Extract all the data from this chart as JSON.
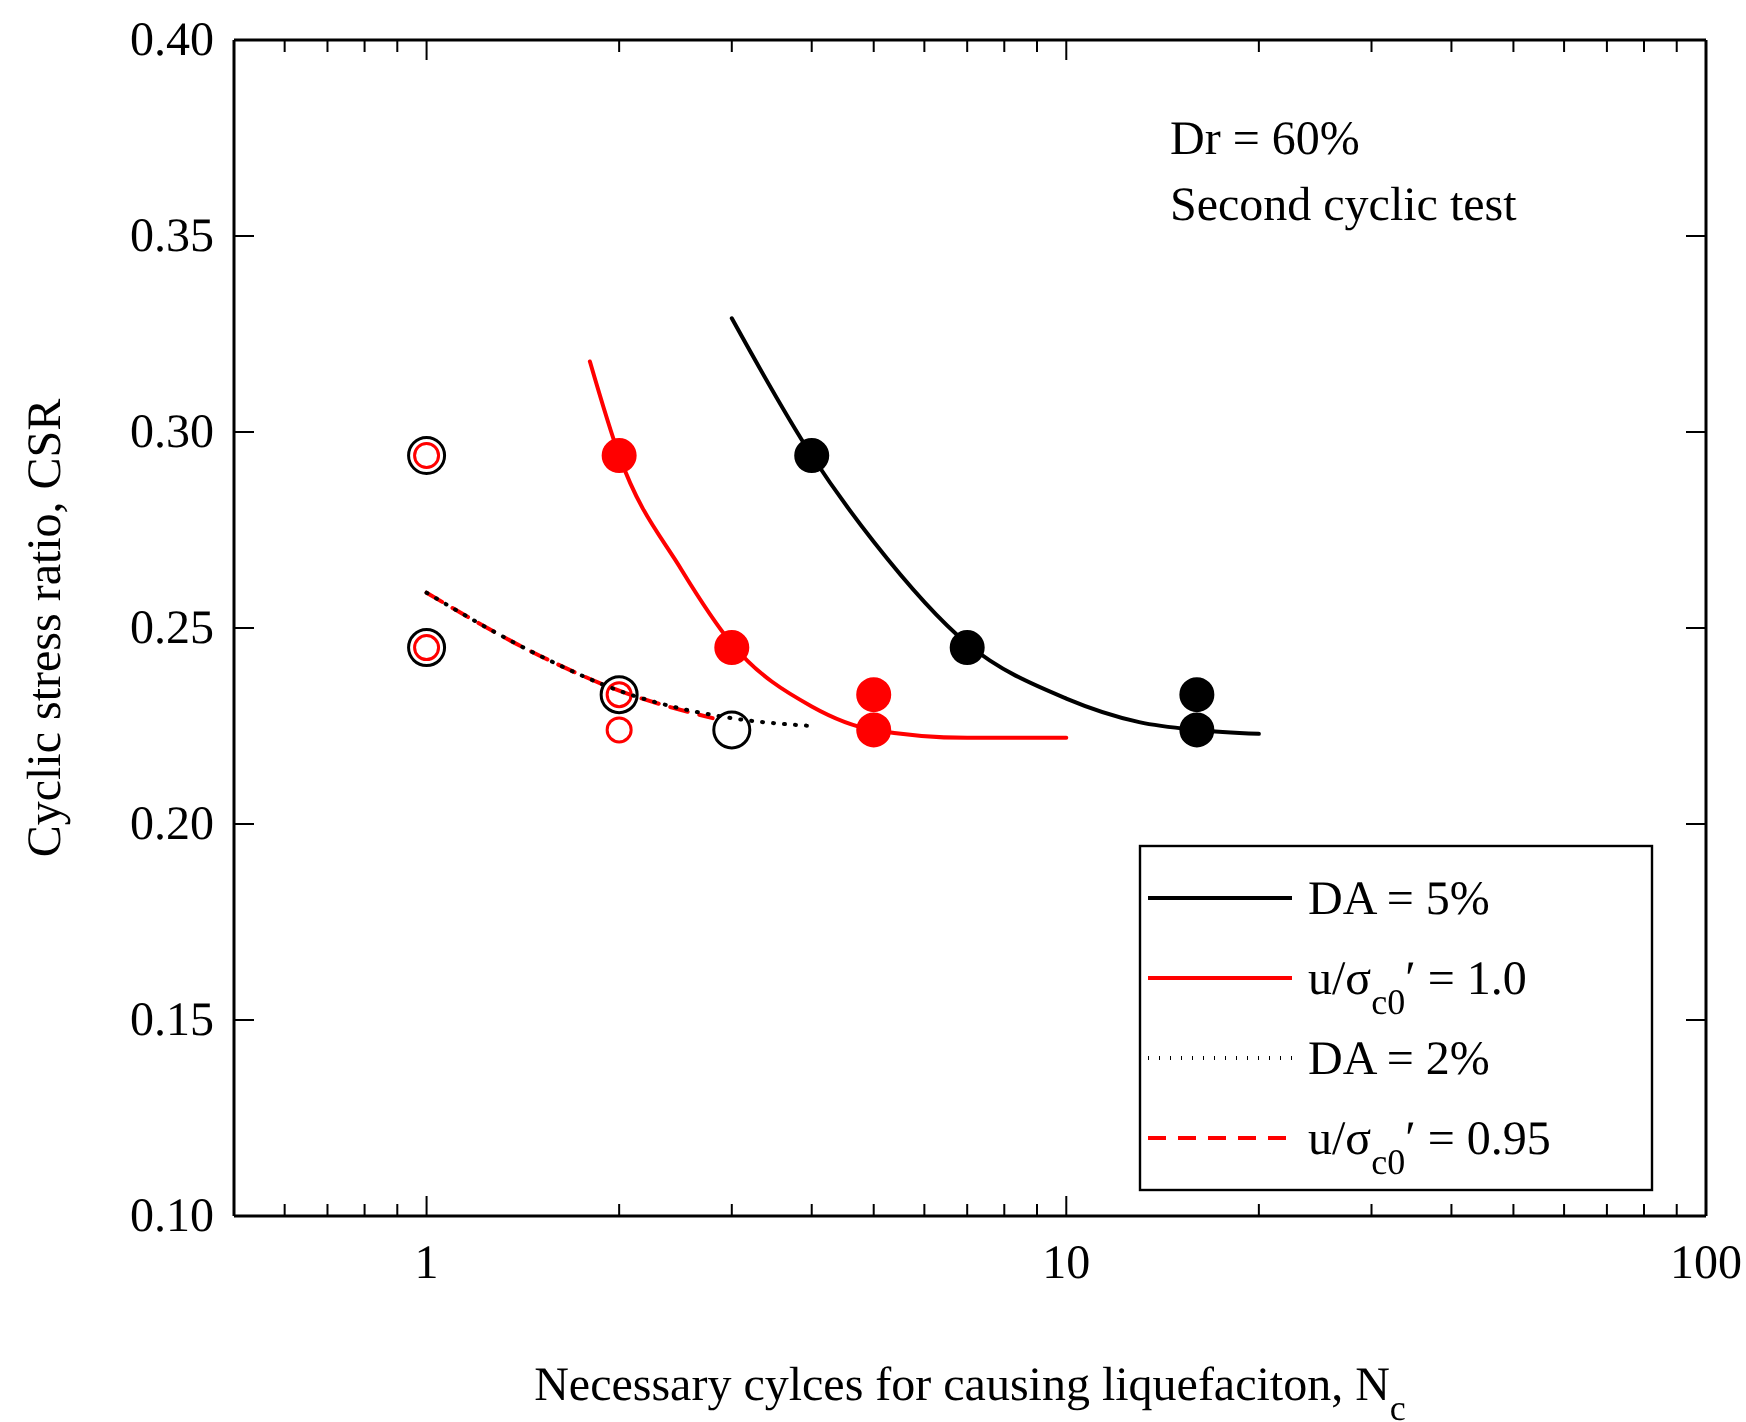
{
  "chart_data": {
    "type": "scatter",
    "xlabel": "Necessary cylces for causing liquefaciton, N$_{c}$",
    "ylabel": "Cyclic stress ratio, CSR",
    "log": "x",
    "xlim": [
      0.5,
      100
    ],
    "ylim": [
      0.1,
      0.4
    ],
    "xticks": [
      {
        "value": 0.6,
        "label": null
      },
      {
        "value": 0.7,
        "label": null
      },
      {
        "value": 0.8,
        "label": null
      },
      {
        "value": 0.9,
        "label": null
      },
      1,
      {
        "value": 2,
        "label": null
      },
      {
        "value": 3,
        "label": null
      },
      {
        "value": 4,
        "label": null
      },
      {
        "value": 5,
        "label": null
      },
      {
        "value": 6,
        "label": null
      },
      {
        "value": 7,
        "label": null
      },
      {
        "value": 8,
        "label": null
      },
      {
        "value": 9,
        "label": null
      },
      10,
      {
        "value": 20,
        "label": null
      },
      {
        "value": 30,
        "label": null
      },
      {
        "value": 40,
        "label": null
      },
      {
        "value": 50,
        "label": null
      },
      {
        "value": 60,
        "label": null
      },
      {
        "value": 70,
        "label": null
      },
      {
        "value": 80,
        "label": null
      },
      {
        "value": 90,
        "label": null
      },
      100
    ],
    "yticks": [
      {
        "value": 0.1,
        "label": "0.10"
      },
      {
        "value": 0.15,
        "label": "0.15"
      },
      {
        "value": 0.2,
        "label": "0.20"
      },
      {
        "value": 0.25,
        "label": "0.25"
      },
      {
        "value": 0.3,
        "label": "0.30"
      },
      {
        "value": 0.35,
        "label": "0.35"
      },
      {
        "value": 0.4,
        "label": "0.40"
      }
    ],
    "grid": false,
    "legend": "bottom right",
    "annotations": [
      "Dr = 60%",
      "Second cyclic test"
    ],
    "series": [
      {
        "name": "DA = 5%",
        "type": "line",
        "color": "#000000",
        "marker": "none",
        "line_style": "solid",
        "x": [
          3,
          4,
          5,
          7,
          10,
          13,
          16,
          20
        ],
        "values": [
          0.329,
          0.294,
          0.272,
          0.246,
          0.232,
          0.226,
          0.224,
          0.223
        ]
      },
      {
        "name": "u/σ$_{c0}$′ = 1.0",
        "type": "line",
        "color": "#ff0000",
        "marker": "none",
        "line_style": "solid",
        "x": [
          1.8,
          2,
          2.5,
          3,
          4,
          5,
          7,
          10
        ],
        "values": [
          0.318,
          0.294,
          0.265,
          0.246,
          0.23,
          0.224,
          0.222,
          0.222
        ]
      },
      {
        "name": "DA = 2%",
        "type": "line",
        "color": "#000000",
        "marker": "none",
        "line_style": "dotted",
        "x": [
          1,
          1.5,
          2,
          3,
          4
        ],
        "values": [
          0.259,
          0.243,
          0.234,
          0.227,
          0.225
        ]
      },
      {
        "name": "u/σ$_{c0}$′ = 0.95",
        "type": "line",
        "color": "#ff0000",
        "marker": "none",
        "line_style": "dashed",
        "x": [
          1,
          1.5,
          2,
          2.8
        ],
        "values": [
          0.259,
          0.243,
          0.234,
          0.227
        ]
      },
      {
        "color": "#000000",
        "marker": "circle",
        "x": [
          4,
          7,
          16,
          16
        ],
        "values": [
          0.294,
          0.245,
          0.233,
          0.224
        ]
      },
      {
        "color": "#ff0000",
        "marker": "circle",
        "x": [
          2,
          3,
          5,
          5
        ],
        "values": [
          0.294,
          0.245,
          0.233,
          0.224
        ]
      },
      {
        "color": "#000000",
        "marker": "circle",
        "x": [
          1,
          1,
          2,
          3
        ],
        "values": [
          0.294,
          0.245,
          0.233,
          0.224
        ]
      },
      {
        "color": "#ff0000",
        "marker": "circle",
        "x": [
          1,
          1,
          2,
          2
        ],
        "values": [
          0.294,
          0.245,
          0.233,
          0.224
        ]
      }
    ]
  }
}
